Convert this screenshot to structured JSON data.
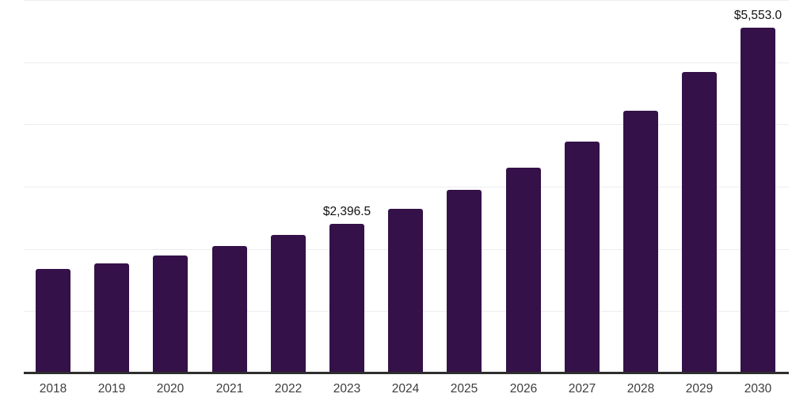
{
  "chart_data": {
    "type": "bar",
    "title": "",
    "xlabel": "",
    "ylabel": "",
    "categories": [
      "2018",
      "2019",
      "2020",
      "2021",
      "2022",
      "2023",
      "2024",
      "2025",
      "2026",
      "2027",
      "2028",
      "2029",
      "2030"
    ],
    "values": [
      1680,
      1770,
      1890,
      2050,
      2220,
      2396.5,
      2650,
      2945,
      3300,
      3720,
      4220,
      4845,
      5553
    ],
    "annotations": [
      {
        "category": "2023",
        "text": "$2,396.5"
      },
      {
        "category": "2030",
        "text": "$5,553.0"
      }
    ],
    "ylim": [
      0,
      6000
    ],
    "gridline_step": 1000,
    "grid": true,
    "y_axis_labels_visible": false,
    "legend": "none",
    "bar_color": "#341148",
    "axis_line_color": "#2e2e2e",
    "gridline_color": "#ededed",
    "tick_label_color": "#3d3d3d",
    "annotation_color": "#111111",
    "background_color": "#ffffff"
  }
}
